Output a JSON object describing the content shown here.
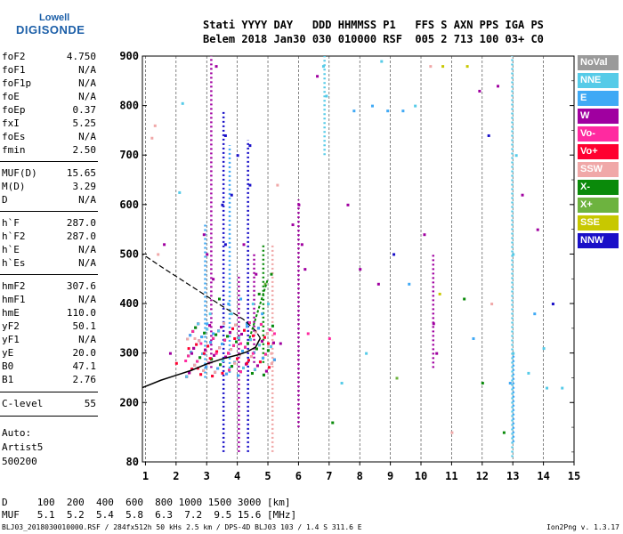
{
  "logo": {
    "line1": "Lowell",
    "line2": "DIGISONDE"
  },
  "header": {
    "line1": "Stati YYYY DAY   DDD HHMMSS P1   FFS S AXN PPS IGA PS",
    "line2": "Belem 2018 Jan30 030 010000 RSF  005 2 713 100 03+ C0"
  },
  "params": [
    {
      "k": "foF2",
      "v": "4.750"
    },
    {
      "k": "foF1",
      "v": "N/A"
    },
    {
      "k": "foF1p",
      "v": "N/A"
    },
    {
      "k": "foE",
      "v": "N/A"
    },
    {
      "k": "foEp",
      "v": "0.37"
    },
    {
      "k": "fxI",
      "v": "5.25"
    },
    {
      "k": "foEs",
      "v": "N/A"
    },
    {
      "k": "fmin",
      "v": "2.50"
    },
    {
      "k": "MUF(D)",
      "v": "15.65"
    },
    {
      "k": "M(D)",
      "v": "3.29"
    },
    {
      "k": "D",
      "v": "N/A"
    },
    {
      "k": "h`F",
      "v": "287.0"
    },
    {
      "k": "h`F2",
      "v": "287.0"
    },
    {
      "k": "h`E",
      "v": "N/A"
    },
    {
      "k": "h`Es",
      "v": "N/A"
    },
    {
      "k": "hmF2",
      "v": "307.6"
    },
    {
      "k": "hmF1",
      "v": "N/A"
    },
    {
      "k": "hmE",
      "v": "110.0"
    },
    {
      "k": "yF2",
      "v": "50.1"
    },
    {
      "k": "yF1",
      "v": "N/A"
    },
    {
      "k": "yE",
      "v": "20.0"
    },
    {
      "k": "B0",
      "v": "47.1"
    },
    {
      "k": "B1",
      "v": "2.76"
    },
    {
      "k": "C-level",
      "v": "55"
    }
  ],
  "notes": {
    "auto": "Auto:",
    "artist": "Artist5",
    "version": "500200"
  },
  "bottom": {
    "line1": "D     100  200  400  600  800 1000 1500 3000 [km]",
    "line2": "MUF   5.1  5.2  5.4  5.8  6.3  7.2  9.5 15.6 [MHz]"
  },
  "footer": "BLJ03_2018030010000.RSF / 284fx512h 50 kHs 2.5 km / DPS-4D BLJ03 103 / 1.4 S 311.6 E",
  "software_version": "Ion2Png v. 1.3.17",
  "legend": [
    {
      "label": "NoVal",
      "color": "#9a9a9a"
    },
    {
      "label": "NNE",
      "color": "#56cbe8"
    },
    {
      "label": "E",
      "color": "#3fa9f5"
    },
    {
      "label": "W",
      "color": "#a000a0"
    },
    {
      "label": "Vo-",
      "color": "#ff2aa0"
    },
    {
      "label": "Vo+",
      "color": "#ff0030"
    },
    {
      "label": "SSW",
      "color": "#f0a8a8"
    },
    {
      "label": "X-",
      "color": "#0a8a0a"
    },
    {
      "label": "X+",
      "color": "#6db33f"
    },
    {
      "label": "SSE",
      "color": "#c8c800"
    },
    {
      "label": "NNW",
      "color": "#1a10c8"
    }
  ],
  "chart_data": {
    "type": "scatter",
    "title": "",
    "xlabel": "",
    "ylabel": "",
    "xlim": [
      0.9,
      15
    ],
    "ylim": [
      80,
      900
    ],
    "x_ticks": [
      1,
      2,
      3,
      4,
      5,
      6,
      7,
      8,
      9,
      10,
      11,
      12,
      13,
      14,
      15
    ],
    "y_ticks": [
      80,
      200,
      300,
      400,
      500,
      600,
      700,
      800,
      900
    ],
    "grid": "dashed vertical",
    "legend_position": "right",
    "trace_curve": [
      [
        0.9,
        230
      ],
      [
        1.5,
        245
      ],
      [
        2,
        255
      ],
      [
        2.5,
        265
      ],
      [
        3,
        278
      ],
      [
        3.5,
        288
      ],
      [
        4,
        296
      ],
      [
        4.3,
        302
      ],
      [
        4.6,
        312
      ],
      [
        4.75,
        330
      ],
      [
        4.6,
        345
      ],
      [
        4.2,
        368
      ],
      [
        3.5,
        395
      ],
      [
        3,
        415
      ],
      [
        2.5,
        435
      ],
      [
        2,
        455
      ],
      [
        1.5,
        475
      ],
      [
        0.9,
        500
      ]
    ],
    "curve_solid_until_index": 9,
    "points": [
      [
        1.2,
        735,
        "SSW"
      ],
      [
        1.3,
        760,
        "SSW"
      ],
      [
        1.4,
        500,
        "SSW"
      ],
      [
        1.6,
        520,
        "W"
      ],
      [
        1.8,
        300,
        "W"
      ],
      [
        2.0,
        280,
        "Vo+"
      ],
      [
        2.1,
        625,
        "NNE"
      ],
      [
        2.2,
        805,
        "NNE"
      ],
      [
        2.3,
        285,
        "Vo-"
      ],
      [
        2.4,
        310,
        "Vo+"
      ],
      [
        2.5,
        300,
        "W"
      ],
      [
        2.6,
        330,
        "SSW"
      ],
      [
        2.7,
        270,
        "Vo+"
      ],
      [
        2.8,
        320,
        "Vo-"
      ],
      [
        2.9,
        300,
        "Vo+"
      ],
      [
        2.9,
        540,
        "W"
      ],
      [
        3.0,
        360,
        "E"
      ],
      [
        3.0,
        500,
        "W"
      ],
      [
        3.1,
        290,
        "Vo+"
      ],
      [
        3.1,
        380,
        "NNE"
      ],
      [
        3.2,
        340,
        "E"
      ],
      [
        3.2,
        450,
        "W"
      ],
      [
        3.3,
        300,
        "Vo-"
      ],
      [
        3.3,
        880,
        "W"
      ],
      [
        3.4,
        410,
        "X-"
      ],
      [
        3.5,
        260,
        "Vo+"
      ],
      [
        3.5,
        600,
        "NNW"
      ],
      [
        3.6,
        520,
        "NNW"
      ],
      [
        3.6,
        740,
        "NNW"
      ],
      [
        3.7,
        400,
        "E"
      ],
      [
        3.7,
        300,
        "Vo-"
      ],
      [
        3.8,
        380,
        "NNE"
      ],
      [
        3.8,
        620,
        "NNW"
      ],
      [
        3.9,
        330,
        "Vo+"
      ],
      [
        3.9,
        280,
        "SSW"
      ],
      [
        4.0,
        700,
        "NNW"
      ],
      [
        4.1,
        410,
        "E"
      ],
      [
        4.1,
        320,
        "Vo-"
      ],
      [
        4.2,
        520,
        "W"
      ],
      [
        4.3,
        360,
        "E"
      ],
      [
        4.3,
        280,
        "Vo+"
      ],
      [
        4.4,
        640,
        "NNW"
      ],
      [
        4.4,
        720,
        "NNW"
      ],
      [
        4.5,
        400,
        "NNE"
      ],
      [
        4.5,
        300,
        "Vo-"
      ],
      [
        4.6,
        460,
        "W"
      ],
      [
        4.7,
        420,
        "X-"
      ],
      [
        4.8,
        380,
        "E"
      ],
      [
        4.9,
        440,
        "X+"
      ],
      [
        5.0,
        400,
        "NNE"
      ],
      [
        5.0,
        320,
        "Vo+"
      ],
      [
        5.1,
        460,
        "X-"
      ],
      [
        5.1,
        300,
        "SSW"
      ],
      [
        5.2,
        340,
        "Vo-"
      ],
      [
        5.3,
        640,
        "SSW"
      ],
      [
        5.4,
        320,
        "W"
      ],
      [
        5.8,
        560,
        "W"
      ],
      [
        6.0,
        600,
        "W"
      ],
      [
        6.1,
        520,
        "W"
      ],
      [
        6.2,
        470,
        "W"
      ],
      [
        6.3,
        340,
        "Vo-"
      ],
      [
        6.6,
        860,
        "W"
      ],
      [
        6.8,
        880,
        "NNE"
      ],
      [
        6.9,
        820,
        "NNE"
      ],
      [
        7.0,
        330,
        "Vo-"
      ],
      [
        7.1,
        160,
        "X-"
      ],
      [
        7.4,
        240,
        "NNE"
      ],
      [
        7.6,
        600,
        "W"
      ],
      [
        7.8,
        790,
        "E"
      ],
      [
        8.0,
        470,
        "W"
      ],
      [
        8.2,
        300,
        "NNE"
      ],
      [
        8.4,
        800,
        "E"
      ],
      [
        8.6,
        440,
        "W"
      ],
      [
        8.7,
        890,
        "NNE"
      ],
      [
        8.9,
        790,
        "E"
      ],
      [
        9.1,
        500,
        "NNW"
      ],
      [
        9.4,
        790,
        "E"
      ],
      [
        9.6,
        440,
        "E"
      ],
      [
        9.8,
        800,
        "NNE"
      ],
      [
        10.1,
        540,
        "W"
      ],
      [
        10.3,
        880,
        "SSW"
      ],
      [
        10.4,
        360,
        "W"
      ],
      [
        10.5,
        300,
        "W"
      ],
      [
        10.6,
        420,
        "SSE"
      ],
      [
        10.7,
        880,
        "SSE"
      ],
      [
        11.0,
        140,
        "SSW"
      ],
      [
        11.4,
        410,
        "X-"
      ],
      [
        11.5,
        880,
        "SSE"
      ],
      [
        11.7,
        330,
        "E"
      ],
      [
        11.9,
        830,
        "W"
      ],
      [
        12.0,
        240,
        "X-"
      ],
      [
        12.3,
        400,
        "SSW"
      ],
      [
        12.5,
        840,
        "W"
      ],
      [
        12.7,
        140,
        "X-"
      ],
      [
        12.9,
        240,
        "E"
      ],
      [
        13.0,
        300,
        "NNE"
      ],
      [
        13.0,
        500,
        "NNE"
      ],
      [
        13.1,
        700,
        "NNE"
      ],
      [
        13.3,
        620,
        "W"
      ],
      [
        13.5,
        260,
        "NNE"
      ],
      [
        13.7,
        380,
        "E"
      ],
      [
        13.8,
        550,
        "W"
      ],
      [
        14.0,
        310,
        "NNE"
      ],
      [
        14.1,
        230,
        "NNE"
      ],
      [
        14.3,
        400,
        "NNW"
      ],
      [
        14.6,
        230,
        "NNE"
      ],
      [
        12.2,
        740,
        "NNW"
      ],
      [
        9.2,
        250,
        "X+"
      ]
    ],
    "vertical_streaks": [
      {
        "x": 2.95,
        "y0": 250,
        "y1": 560,
        "color": "E"
      },
      {
        "x": 3.15,
        "y0": 270,
        "y1": 900,
        "color": "W"
      },
      {
        "x": 3.55,
        "y0": 100,
        "y1": 790,
        "color": "NNW"
      },
      {
        "x": 3.75,
        "y0": 260,
        "y1": 720,
        "color": "E"
      },
      {
        "x": 4.05,
        "y0": 100,
        "y1": 460,
        "color": "W"
      },
      {
        "x": 4.35,
        "y0": 100,
        "y1": 730,
        "color": "NNW"
      },
      {
        "x": 4.55,
        "y0": 280,
        "y1": 500,
        "color": "W"
      },
      {
        "x": 4.85,
        "y0": 280,
        "y1": 520,
        "color": "X-"
      },
      {
        "x": 5.15,
        "y0": 100,
        "y1": 520,
        "color": "SSW"
      },
      {
        "x": 6.0,
        "y0": 150,
        "y1": 610,
        "color": "W"
      },
      {
        "x": 6.85,
        "y0": 700,
        "y1": 900,
        "color": "NNE"
      },
      {
        "x": 10.4,
        "y0": 270,
        "y1": 500,
        "color": "W"
      },
      {
        "x": 12.98,
        "y0": 90,
        "y1": 900,
        "color": "NNE"
      },
      {
        "x": 13.02,
        "y0": 120,
        "y1": 300,
        "color": "E"
      }
    ]
  }
}
